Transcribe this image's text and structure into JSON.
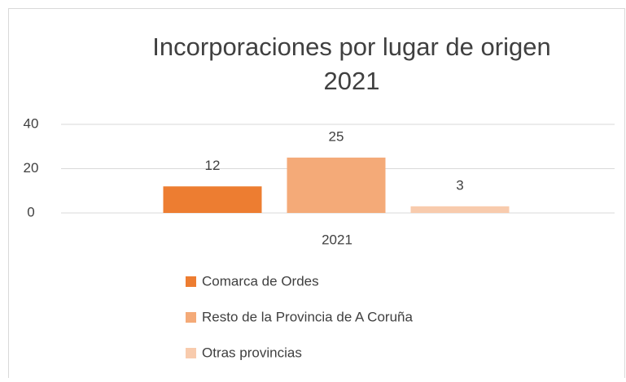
{
  "chart_data": {
    "type": "bar",
    "title": [
      "Incorporaciones por lugar de origen",
      "2021"
    ],
    "categories": [
      "2021"
    ],
    "series": [
      {
        "name": "Comarca de Ordes",
        "color": "#ed7d31",
        "values": [
          12
        ]
      },
      {
        "name": "Resto de la Provincia de A Coruña",
        "color": "#f4aa78",
        "values": [
          25
        ]
      },
      {
        "name": "Otras provincias",
        "color": "#f8cbad",
        "values": [
          3
        ]
      }
    ],
    "ylim": [
      0,
      40
    ],
    "yticks": [
      0,
      20,
      40
    ],
    "grid": true,
    "legend": "bottom",
    "data_labels": true
  }
}
